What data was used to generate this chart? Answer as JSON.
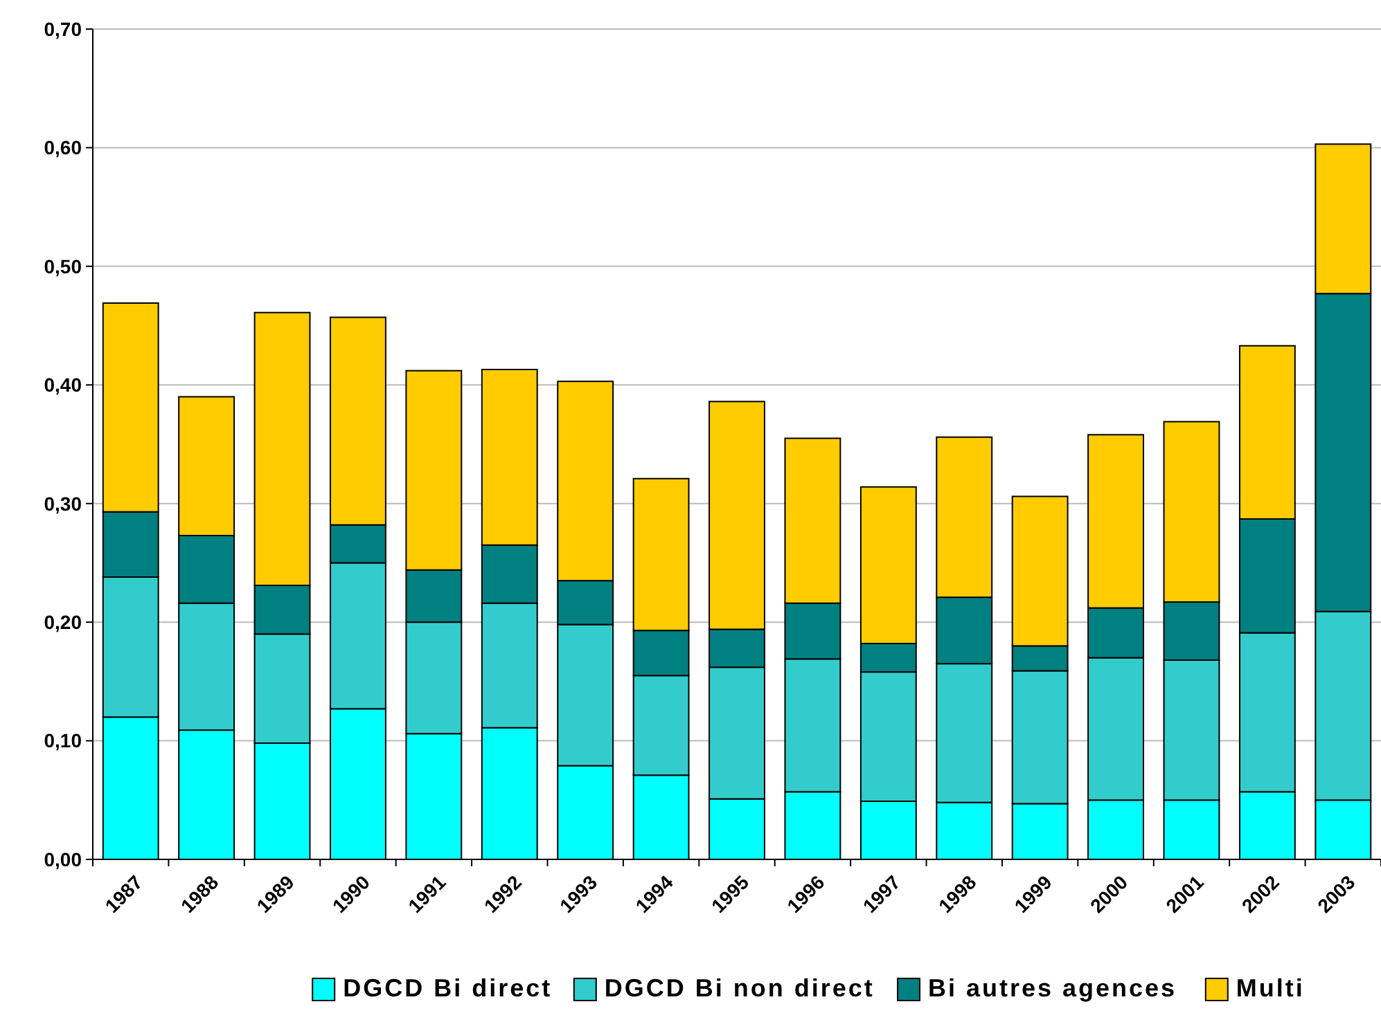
{
  "chart_data": {
    "type": "bar",
    "stacked": true,
    "categories": [
      "1987",
      "1988",
      "1989",
      "1990",
      "1991",
      "1992",
      "1993",
      "1994",
      "1995",
      "1996",
      "1997",
      "1998",
      "1999",
      "2000",
      "2001",
      "2002",
      "2003"
    ],
    "series": [
      {
        "name": "DGCD Bi direct",
        "color": "#00ffff",
        "values": [
          0.12,
          0.109,
          0.098,
          0.127,
          0.106,
          0.111,
          0.079,
          0.071,
          0.051,
          0.057,
          0.049,
          0.048,
          0.047,
          0.05,
          0.05,
          0.057,
          0.05
        ]
      },
      {
        "name": "DGCD Bi non direct",
        "color": "#33cccc",
        "values": [
          0.118,
          0.107,
          0.092,
          0.123,
          0.094,
          0.105,
          0.119,
          0.084,
          0.111,
          0.112,
          0.109,
          0.117,
          0.112,
          0.12,
          0.118,
          0.134,
          0.159
        ]
      },
      {
        "name": "Bi autres agences",
        "color": "#008080",
        "values": [
          0.055,
          0.057,
          0.041,
          0.032,
          0.044,
          0.049,
          0.037,
          0.038,
          0.032,
          0.047,
          0.024,
          0.056,
          0.021,
          0.042,
          0.049,
          0.096,
          0.268
        ]
      },
      {
        "name": "Multi",
        "color": "#ffcc00",
        "values": [
          0.176,
          0.117,
          0.23,
          0.175,
          0.168,
          0.148,
          0.168,
          0.128,
          0.192,
          0.139,
          0.132,
          0.135,
          0.126,
          0.146,
          0.152,
          0.146,
          0.126
        ]
      }
    ],
    "ylim": [
      0,
      0.7
    ],
    "yticks": [
      {
        "value": 0,
        "label": "0,00"
      },
      {
        "value": 0.1,
        "label": "0,10"
      },
      {
        "value": 0.2,
        "label": "0,20"
      },
      {
        "value": 0.3,
        "label": "0,30"
      },
      {
        "value": 0.4,
        "label": "0,40"
      },
      {
        "value": 0.5,
        "label": "0,50"
      },
      {
        "value": 0.6,
        "label": "0,60"
      },
      {
        "value": 0.7,
        "label": "0,70"
      }
    ],
    "grid": "y",
    "legend": "bottom"
  }
}
